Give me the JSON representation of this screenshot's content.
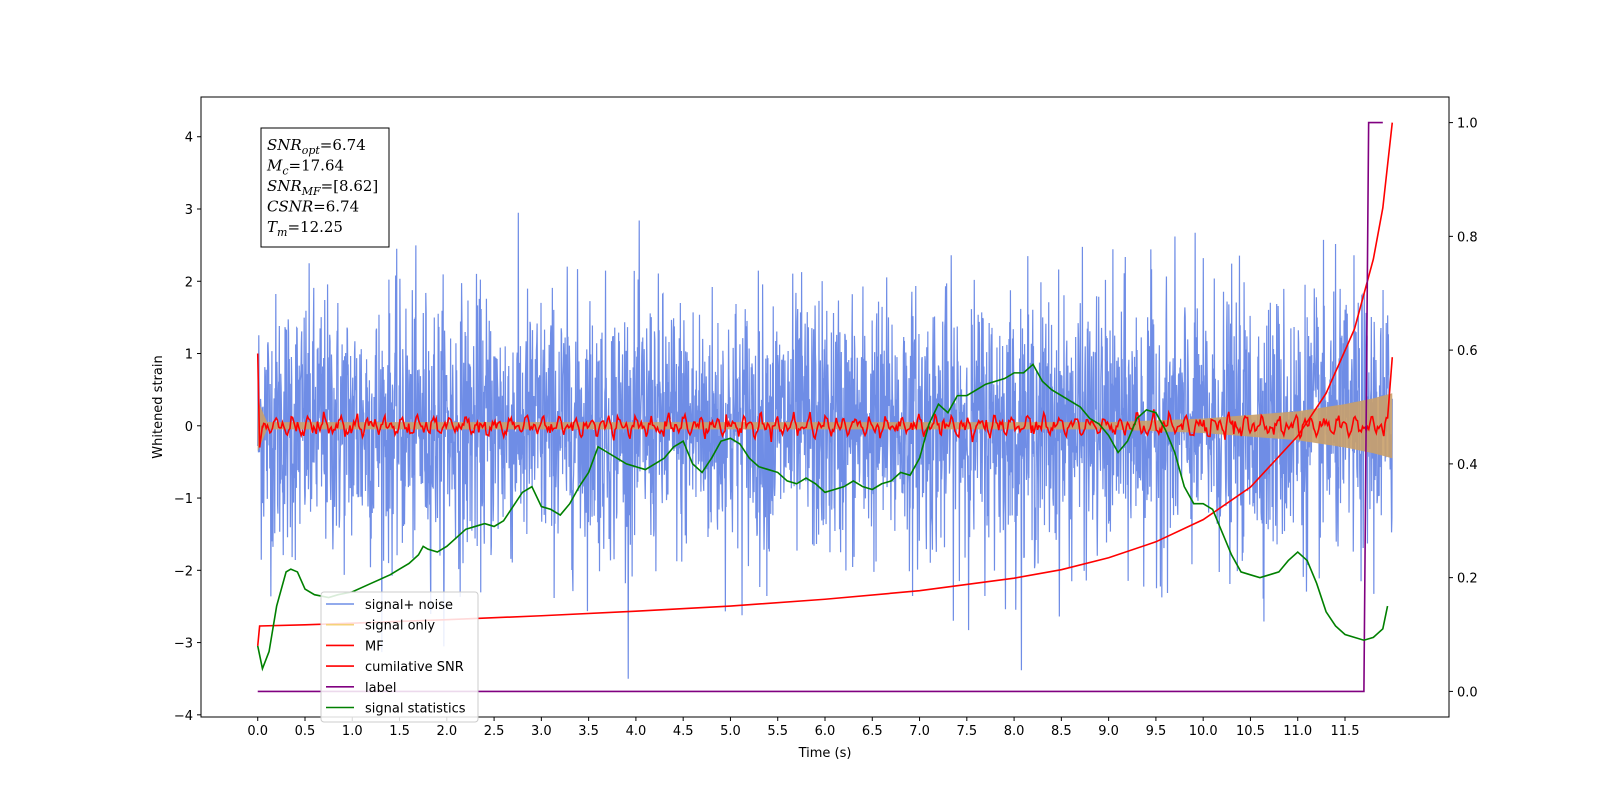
{
  "chart_data": {
    "type": "line",
    "xlabel": "Time (s)",
    "ylabel": "Whitened strain",
    "xlim": [
      -0.6,
      12.6
    ],
    "ylim": [
      -4.03,
      4.55
    ],
    "y2lim": [
      -0.045,
      1.045
    ],
    "x_ticks": [
      0.0,
      0.5,
      1.0,
      1.5,
      2.0,
      2.5,
      3.0,
      3.5,
      4.0,
      4.5,
      5.0,
      5.5,
      6.0,
      6.5,
      7.0,
      7.5,
      8.0,
      8.5,
      9.0,
      9.5,
      10.0,
      10.5,
      11.0,
      11.5
    ],
    "x_tick_labels": [
      "0.0",
      "0.5",
      "1.0",
      "1.5",
      "2.0",
      "2.5",
      "3.0",
      "3.5",
      "4.0",
      "4.5",
      "5.0",
      "5.5",
      "6.0",
      "6.5",
      "7.0",
      "7.5",
      "8.0",
      "8.5",
      "9.0",
      "9.5",
      "10.0",
      "10.5",
      "11.0",
      "11.5"
    ],
    "y_ticks": [
      -4,
      -3,
      -2,
      -1,
      0,
      1,
      2,
      3,
      4
    ],
    "y_tick_labels": [
      "−4",
      "−3",
      "−2",
      "−1",
      "0",
      "1",
      "2",
      "3",
      "4"
    ],
    "y2_ticks": [
      0.0,
      0.2,
      0.4,
      0.6,
      0.8,
      1.0
    ],
    "y2_tick_labels": [
      "0.0",
      "0.2",
      "0.4",
      "0.6",
      "0.8",
      "1.0"
    ],
    "colors": {
      "noise": "#6f8de6",
      "signal": "#c9a06a",
      "signal_legend": "#f5d27a",
      "mf": "#ff0000",
      "csnr": "#ff0000",
      "label": "#800080",
      "stats": "#008000"
    },
    "series": [
      {
        "name": "signal+ noise",
        "axis": "left",
        "color": "#6f8de6",
        "description_envelope": [
          [
            0.0,
            -1.0,
            1.0
          ],
          [
            12.0,
            -1.0,
            1.0
          ]
        ]
      },
      {
        "name": "signal only",
        "axis": "left",
        "color": "#c9a06a",
        "amplitude_envelope": [
          [
            0.0,
            0.35
          ],
          [
            0.1,
            0.05
          ],
          [
            9.0,
            0.05
          ],
          [
            10.0,
            0.1
          ],
          [
            11.0,
            0.2
          ],
          [
            11.5,
            0.3
          ],
          [
            11.8,
            0.38
          ],
          [
            12.0,
            0.45
          ]
        ]
      },
      {
        "name": "MF",
        "axis": "left",
        "color": "#ff0000",
        "start_points": [
          [
            0.0,
            1.0
          ],
          [
            0.02,
            -0.3
          ],
          [
            0.05,
            0.0
          ]
        ],
        "end_points": [
          [
            11.95,
            0.1
          ],
          [
            12.0,
            0.95
          ]
        ],
        "oscillation_amplitude": 0.12
      },
      {
        "name": "cumilative SNR",
        "axis": "right",
        "color": "#ff0000",
        "x": [
          0.0,
          0.02,
          0.5,
          1,
          2,
          3,
          4,
          5,
          6,
          7,
          8,
          8.5,
          9,
          9.5,
          10,
          10.5,
          11,
          11.3,
          11.6,
          11.8,
          11.9,
          12.0
        ],
        "y": [
          0.08,
          0.115,
          0.117,
          0.12,
          0.126,
          0.133,
          0.141,
          0.15,
          0.162,
          0.177,
          0.199,
          0.214,
          0.235,
          0.263,
          0.302,
          0.359,
          0.449,
          0.524,
          0.637,
          0.76,
          0.85,
          1.0
        ]
      },
      {
        "name": "label",
        "axis": "right",
        "color": "#800080",
        "x": [
          0.0,
          11.7,
          11.75,
          11.9
        ],
        "y": [
          0.0,
          0.0,
          1.0,
          1.0
        ]
      },
      {
        "name": "signal statistics",
        "axis": "right",
        "color": "#008000",
        "x": [
          0,
          0.05,
          0.12,
          0.2,
          0.3,
          0.35,
          0.42,
          0.5,
          0.6,
          0.75,
          0.85,
          1.0,
          1.2,
          1.4,
          1.5,
          1.6,
          1.7,
          1.75,
          1.8,
          1.9,
          2.0,
          2.1,
          2.2,
          2.3,
          2.4,
          2.5,
          2.6,
          2.7,
          2.8,
          2.9,
          3.0,
          3.1,
          3.2,
          3.3,
          3.4,
          3.5,
          3.6,
          3.7,
          3.8,
          3.9,
          4.0,
          4.1,
          4.2,
          4.3,
          4.4,
          4.5,
          4.6,
          4.7,
          4.8,
          4.9,
          5.0,
          5.1,
          5.2,
          5.3,
          5.4,
          5.5,
          5.6,
          5.7,
          5.8,
          5.9,
          6.0,
          6.1,
          6.2,
          6.3,
          6.4,
          6.5,
          6.6,
          6.7,
          6.8,
          6.9,
          7.0,
          7.1,
          7.2,
          7.3,
          7.4,
          7.5,
          7.6,
          7.7,
          7.8,
          7.9,
          8.0,
          8.1,
          8.2,
          8.3,
          8.4,
          8.5,
          8.6,
          8.7,
          8.8,
          8.9,
          9.0,
          9.1,
          9.2,
          9.3,
          9.4,
          9.5,
          9.6,
          9.7,
          9.8,
          9.9,
          10.0,
          10.1,
          10.2,
          10.3,
          10.4,
          10.5,
          10.6,
          10.7,
          10.8,
          10.9,
          11.0,
          11.1,
          11.2,
          11.3,
          11.4,
          11.5,
          11.6,
          11.7,
          11.8,
          11.9,
          11.95
        ],
        "y": [
          0.08,
          0.04,
          0.07,
          0.15,
          0.21,
          0.215,
          0.21,
          0.18,
          0.17,
          0.165,
          0.17,
          0.175,
          0.19,
          0.205,
          0.215,
          0.225,
          0.24,
          0.255,
          0.25,
          0.245,
          0.255,
          0.27,
          0.285,
          0.29,
          0.295,
          0.29,
          0.3,
          0.325,
          0.35,
          0.36,
          0.325,
          0.32,
          0.31,
          0.33,
          0.36,
          0.385,
          0.43,
          0.42,
          0.41,
          0.4,
          0.395,
          0.39,
          0.4,
          0.41,
          0.43,
          0.44,
          0.4,
          0.385,
          0.41,
          0.44,
          0.445,
          0.435,
          0.41,
          0.395,
          0.39,
          0.385,
          0.37,
          0.365,
          0.375,
          0.365,
          0.35,
          0.355,
          0.36,
          0.37,
          0.36,
          0.355,
          0.365,
          0.37,
          0.385,
          0.38,
          0.41,
          0.47,
          0.505,
          0.49,
          0.52,
          0.52,
          0.53,
          0.54,
          0.545,
          0.55,
          0.56,
          0.56,
          0.575,
          0.545,
          0.53,
          0.52,
          0.51,
          0.5,
          0.48,
          0.47,
          0.45,
          0.42,
          0.44,
          0.48,
          0.495,
          0.49,
          0.46,
          0.42,
          0.36,
          0.33,
          0.33,
          0.32,
          0.28,
          0.24,
          0.21,
          0.205,
          0.2,
          0.205,
          0.21,
          0.23,
          0.245,
          0.23,
          0.19,
          0.14,
          0.115,
          0.1,
          0.095,
          0.09,
          0.095,
          0.11,
          0.15
        ]
      }
    ],
    "legend": {
      "placement": "lower-left",
      "entries": [
        {
          "label": "signal+ noise",
          "color": "#6f8de6"
        },
        {
          "label": "signal only",
          "color": "#f5d27a"
        },
        {
          "label": "MF",
          "color": "#ff0000"
        },
        {
          "label": "cumilative SNR",
          "color": "#ff0000"
        },
        {
          "label": "label",
          "color": "#800080"
        },
        {
          "label": "signal statistics",
          "color": "#008000"
        }
      ]
    },
    "annotations": [
      {
        "name": "SNR",
        "sub": "opt",
        "value": "=6.74"
      },
      {
        "name": "M",
        "sub": "c",
        "value": "=17.64"
      },
      {
        "name": "SNR",
        "sub": "MF",
        "value": "=[8.62]"
      },
      {
        "name": "CSNR",
        "sub": "",
        "value": "=6.74"
      },
      {
        "name": "T",
        "sub": "m",
        "value": "=12.25"
      }
    ]
  }
}
